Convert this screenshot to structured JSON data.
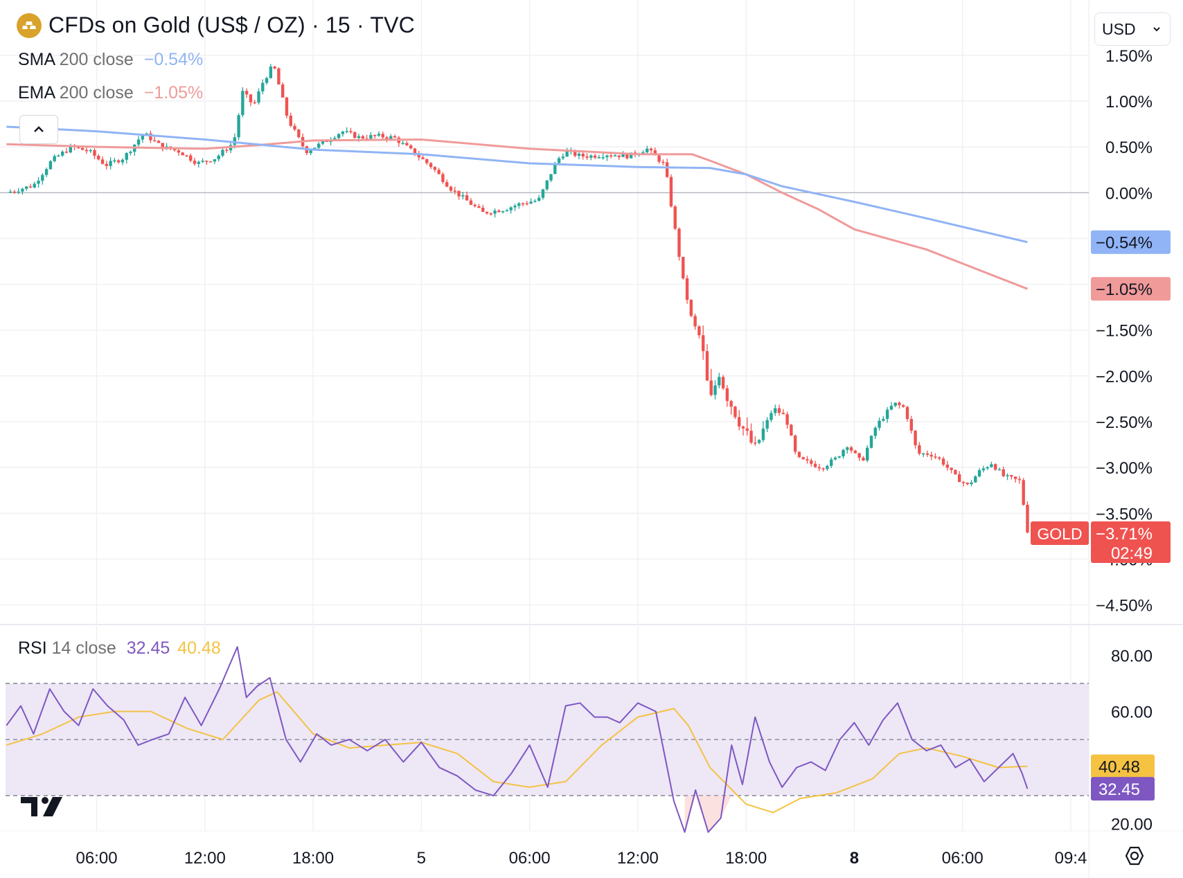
{
  "header": {
    "title": "CFDs on Gold (US$ / OZ) · 15 · TVC",
    "currency": "USD",
    "logo_icon": "gold-bars-icon"
  },
  "legend": {
    "sma": {
      "name": "SMA",
      "params": "200 close",
      "value": "−0.54%",
      "color": "#90b4f5"
    },
    "ema": {
      "name": "EMA",
      "params": "200 close",
      "value": "−1.05%",
      "color": "#f09a9a"
    },
    "rsi": {
      "name": "RSI",
      "params": "14 close",
      "value": "32.45",
      "ma_value": "40.48",
      "color": "#7e57c2",
      "ma_color": "#f5c242"
    }
  },
  "labels": {
    "sma_badge": "−0.54%",
    "ema_badge": "−1.05%",
    "symbol": "GOLD",
    "last_change": "−3.71%",
    "countdown": "02:49",
    "rsi_ma_badge": "40.48",
    "rsi_badge": "32.45"
  },
  "colors": {
    "up": "#26a69a",
    "down": "#ef5350",
    "sma": "#90b4f5",
    "ema": "#f09a9a",
    "rsi": "#7e57c2",
    "rsi_ma": "#f5c242",
    "rsi_band": "#ede7f6"
  },
  "chart_data": [
    {
      "type": "candlestick",
      "title": "CFDs on Gold (US$ / OZ) · 15 · TVC",
      "ylabel": "",
      "y_unit": "% change",
      "ylim": [
        -4.7,
        1.65
      ],
      "y_ticks": [
        1.5,
        1.0,
        0.5,
        0.0,
        -0.5,
        -1.0,
        -1.5,
        -2.0,
        -2.5,
        -3.0,
        -3.5,
        -4.0,
        -4.5
      ],
      "y_tick_labels": [
        "1.50%",
        "1.00%",
        "0.50%",
        "0.00%",
        "−0.50%",
        "−1.00%",
        "−1.50%",
        "−2.00%",
        "−2.50%",
        "−3.00%",
        "−3.50%",
        "−4.00%",
        "−4.50%"
      ],
      "x_ticks": [
        "06:00",
        "12:00",
        "18:00",
        "5",
        "06:00",
        "12:00",
        "18:00",
        "8",
        "06:00",
        "09:4"
      ],
      "x_tick_hours": [
        6,
        12,
        18,
        24,
        30,
        36,
        42,
        48,
        54,
        60
      ],
      "x_range_hours": [
        0.95,
        61.0
      ],
      "last_x_hours": 57.6,
      "series": [
        {
          "name": "GOLD",
          "kind": "close-path",
          "x": [
            1.0,
            2.5,
            3.5,
            4.6,
            5.6,
            6.5,
            7.5,
            8.6,
            9.6,
            10.6,
            11.6,
            12.6,
            13.6,
            14.1,
            14.7,
            15.2,
            15.8,
            16.6,
            17.6,
            18.6,
            19.6,
            20.6,
            21.5,
            22.5,
            23.5,
            24.6,
            25.6,
            26.6,
            27.4,
            28.6,
            29.5,
            30.5,
            31.5,
            32.0,
            32.8,
            33.4,
            34.3,
            35.5,
            36.5,
            37.5,
            38.5,
            39.0,
            39.5,
            40.0,
            40.5,
            40.9,
            41.4,
            41.9,
            42.5,
            43.5,
            44.2,
            44.8,
            45.5,
            46.2,
            47.0,
            47.6,
            48.4,
            49.2,
            50.2,
            50.8,
            51.5,
            52.2,
            52.8,
            53.6,
            54.3,
            54.9,
            55.6,
            56.3,
            57.2,
            57.6
          ],
          "close": [
            0.0,
            0.08,
            0.35,
            0.5,
            0.45,
            0.3,
            0.38,
            0.65,
            0.5,
            0.45,
            0.32,
            0.38,
            0.55,
            1.1,
            0.95,
            1.2,
            1.4,
            0.8,
            0.45,
            0.55,
            0.67,
            0.6,
            0.62,
            0.6,
            0.45,
            0.28,
            0.05,
            -0.1,
            -0.22,
            -0.18,
            -0.12,
            -0.08,
            0.35,
            0.45,
            0.4,
            0.4,
            0.42,
            0.4,
            0.48,
            0.3,
            -0.95,
            -1.4,
            -1.6,
            -2.3,
            -1.95,
            -2.2,
            -2.4,
            -2.6,
            -2.8,
            -2.35,
            -2.45,
            -2.9,
            -2.95,
            -3.0,
            -2.9,
            -2.75,
            -2.95,
            -2.55,
            -2.3,
            -2.35,
            -2.85,
            -2.85,
            -2.92,
            -3.1,
            -3.2,
            -3.05,
            -2.95,
            -3.1,
            -3.15,
            -3.71
          ]
        },
        {
          "name": "SMA 200 close",
          "kind": "line",
          "x": [
            1.0,
            6,
            12,
            18,
            24,
            30,
            36,
            40,
            42,
            44,
            48,
            52,
            57.6
          ],
          "y": [
            0.72,
            0.67,
            0.58,
            0.47,
            0.42,
            0.32,
            0.28,
            0.27,
            0.2,
            0.07,
            -0.1,
            -0.28,
            -0.54
          ]
        },
        {
          "name": "EMA 200 close",
          "kind": "line",
          "x": [
            1.0,
            6,
            12,
            15,
            18,
            24,
            30,
            36,
            39,
            40,
            42,
            44,
            46,
            48,
            52,
            57.6
          ],
          "y": [
            0.53,
            0.5,
            0.48,
            0.52,
            0.57,
            0.58,
            0.48,
            0.42,
            0.42,
            0.35,
            0.2,
            0.0,
            -0.18,
            -0.4,
            -0.62,
            -1.05
          ]
        }
      ]
    },
    {
      "type": "line",
      "title": "RSI 14 close",
      "ylim": [
        13,
        87
      ],
      "y_ticks": [
        80,
        60,
        20
      ],
      "y_tick_labels": [
        "80.00",
        "60.00",
        "20.00"
      ],
      "bands": [
        70,
        50,
        30
      ],
      "series": [
        {
          "name": "RSI",
          "x": [
            1.0,
            1.8,
            2.5,
            3.4,
            4.2,
            5.0,
            5.8,
            6.6,
            7.5,
            8.3,
            9.1,
            10.0,
            10.9,
            11.8,
            12.8,
            13.8,
            14.3,
            14.9,
            15.6,
            16.5,
            17.3,
            18.2,
            19.0,
            20.0,
            21.0,
            22.0,
            23.0,
            24.0,
            25.0,
            26.0,
            27.0,
            28.0,
            29.0,
            30.0,
            31.0,
            32.0,
            32.8,
            33.6,
            34.3,
            35.0,
            36.0,
            37.0,
            38.0,
            38.6,
            39.2,
            39.9,
            40.6,
            41.2,
            41.8,
            42.5,
            43.3,
            44.0,
            44.8,
            45.6,
            46.4,
            47.2,
            48.0,
            48.8,
            49.6,
            50.4,
            51.2,
            52.0,
            52.8,
            53.6,
            54.4,
            55.2,
            56.0,
            56.8,
            57.3,
            57.6
          ],
          "y": [
            55,
            62,
            52,
            68,
            60,
            55,
            68,
            62,
            57,
            48,
            50,
            52,
            65,
            55,
            68,
            83,
            65,
            69,
            72,
            50,
            42,
            52,
            48,
            50,
            46,
            50,
            42,
            49,
            40,
            37,
            32,
            30,
            38,
            48,
            33,
            62,
            63,
            58,
            58,
            56,
            63,
            60,
            28,
            17,
            32,
            17,
            22,
            48,
            34,
            58,
            42,
            33,
            40,
            42,
            39,
            50,
            56,
            48,
            57,
            63,
            50,
            46,
            48,
            40,
            43,
            35,
            40,
            45,
            38,
            32.45
          ]
        },
        {
          "name": "RSI-based MA",
          "x": [
            1.0,
            3,
            5,
            7,
            9,
            11,
            13,
            15,
            16,
            18,
            20,
            22,
            24,
            26,
            28,
            30,
            32,
            34,
            36,
            38,
            38.8,
            40,
            42,
            43.5,
            45,
            47,
            49,
            50.5,
            52,
            54,
            56,
            57.6
          ],
          "y": [
            48,
            52,
            58,
            60,
            60,
            54,
            50,
            64,
            67,
            52,
            47,
            48,
            49,
            45,
            35,
            33,
            35,
            48,
            58,
            61,
            55,
            40,
            27,
            24,
            29,
            31,
            36,
            45,
            47,
            44,
            40,
            40.48
          ]
        }
      ]
    }
  ]
}
